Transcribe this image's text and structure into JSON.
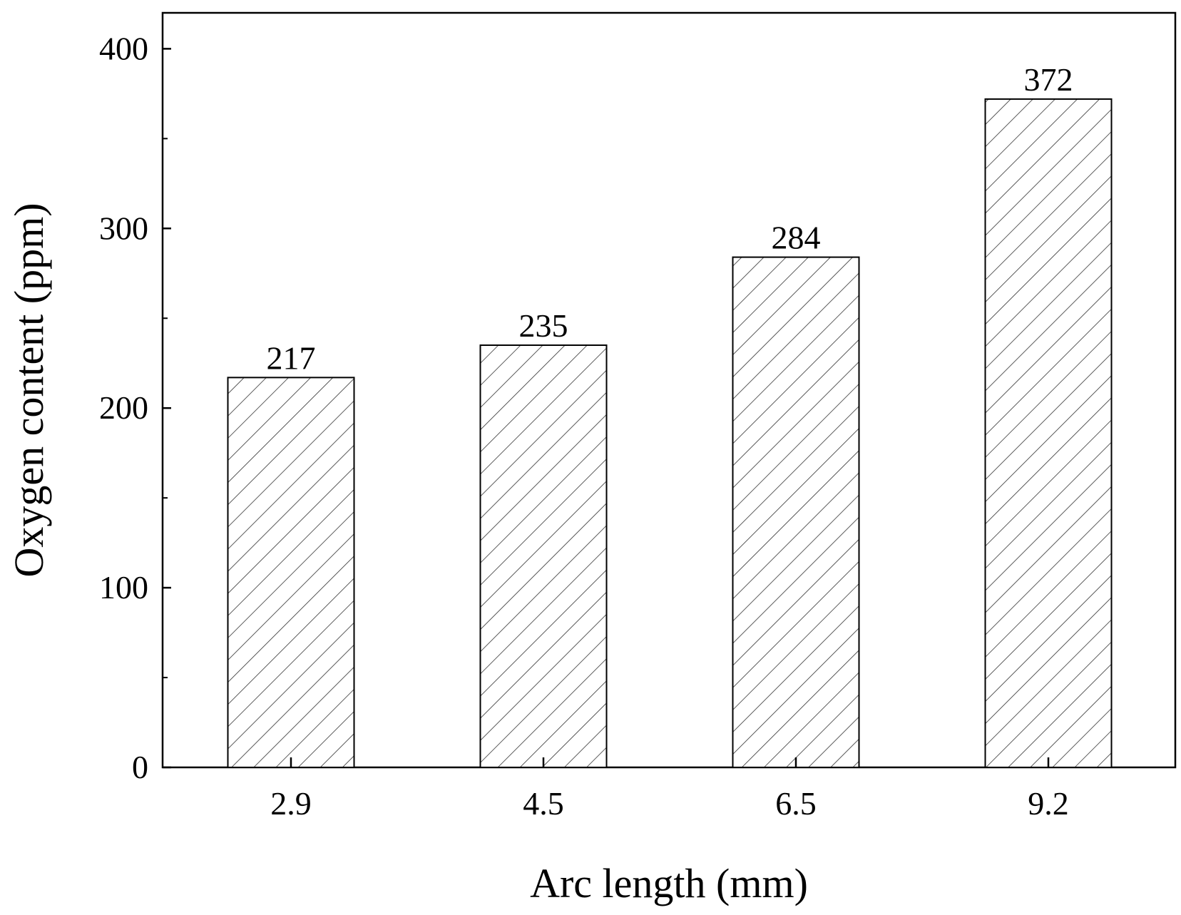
{
  "chart_data": {
    "type": "bar",
    "title": "",
    "xlabel": "Arc length (mm)",
    "ylabel": "Oxygen content (ppm)",
    "categories": [
      "2.9",
      "4.5",
      "6.5",
      "9.2"
    ],
    "values": [
      217,
      235,
      284,
      372
    ],
    "data_labels": [
      "217",
      "235",
      "284",
      "372"
    ],
    "ylim": [
      0,
      420
    ],
    "yticks": [
      0,
      100,
      200,
      300,
      400
    ],
    "ytick_labels": [
      "0",
      "100",
      "200",
      "300",
      "400"
    ],
    "y_minor_ticks": [
      50,
      150,
      250,
      350
    ],
    "grid": false,
    "legend": "none",
    "bar_fill": "diagonal hatch",
    "colors": {
      "bar_edge": "#000000",
      "hatch": "#333333",
      "axis": "#000000",
      "background": "#ffffff"
    }
  }
}
